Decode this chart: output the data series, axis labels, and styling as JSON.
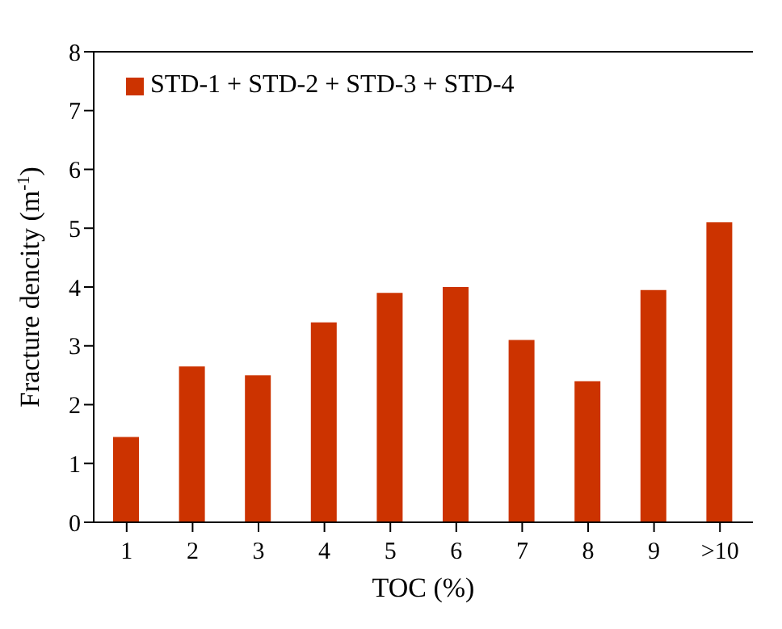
{
  "chart_data": {
    "type": "bar",
    "xlabel": "TOC (%)",
    "ylabel": "Fracture dencity (m$^{-1}$)",
    "categories": [
      "1",
      "2",
      "3",
      "4",
      "5",
      "6",
      "7",
      "8",
      "9",
      ">10"
    ],
    "series": [
      {
        "name": "STD-1 + STD-2 + STD-3 + STD-4",
        "color": "#cc3300",
        "values": [
          1.45,
          2.65,
          2.5,
          3.4,
          3.9,
          4.0,
          3.1,
          2.4,
          3.95,
          5.1
        ]
      }
    ],
    "ylim": [
      0,
      8
    ],
    "yticks": [
      0,
      1,
      2,
      3,
      4,
      5,
      6,
      7,
      8
    ],
    "grid": false,
    "legend": "top left"
  }
}
